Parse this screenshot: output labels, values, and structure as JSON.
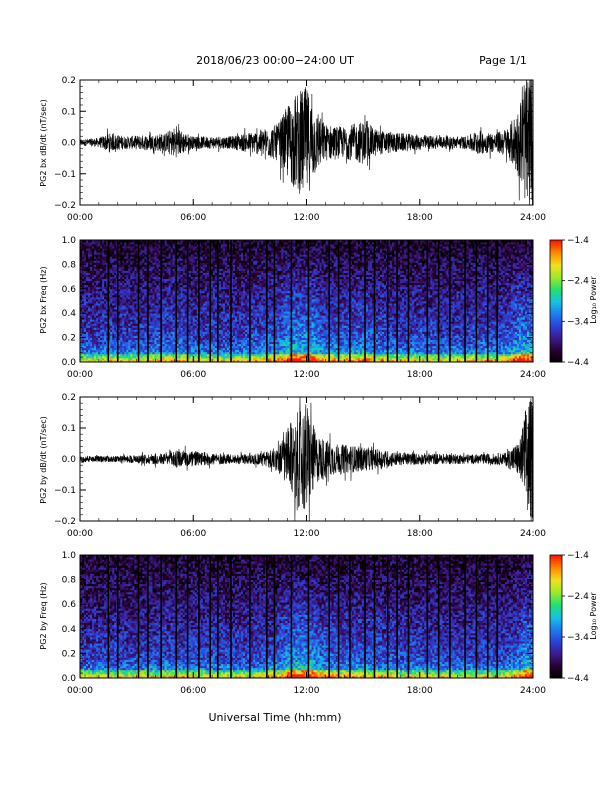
{
  "header": {
    "title": "2018/06/23  00:00−24:00 UT",
    "page": "Page 1/1"
  },
  "footer": {
    "xlabel": "Universal Time (hh:mm)"
  },
  "colors": {
    "trace": "#000000",
    "colormap": [
      "#000000",
      "#2a0030",
      "#3b1a8a",
      "#2d3fd6",
      "#1e7cf0",
      "#18c0e6",
      "#22e070",
      "#9ee82a",
      "#f0e020",
      "#ff8c00",
      "#ff1a00"
    ]
  },
  "chart_data": [
    {
      "type": "line",
      "ylabel": "PG2 bx dB/dt (nT/sec)",
      "xticks": [
        "00:00",
        "06:00",
        "12:00",
        "18:00",
        "24:00"
      ],
      "xlim": [
        0,
        24
      ],
      "ylim": [
        -0.2,
        0.2
      ],
      "yticks": [
        "−0.2",
        "−0.1",
        "0.0",
        "0.1",
        "0.2"
      ],
      "grid": false,
      "envelope": [
        {
          "t": 0.0,
          "a": 0.01
        },
        {
          "t": 1.0,
          "a": 0.015
        },
        {
          "t": 1.5,
          "a": 0.03
        },
        {
          "t": 2.5,
          "a": 0.02
        },
        {
          "t": 4.5,
          "a": 0.03
        },
        {
          "t": 5.0,
          "a": 0.05
        },
        {
          "t": 6.0,
          "a": 0.02
        },
        {
          "t": 8.0,
          "a": 0.02
        },
        {
          "t": 9.5,
          "a": 0.04
        },
        {
          "t": 10.5,
          "a": 0.06
        },
        {
          "t": 11.0,
          "a": 0.12
        },
        {
          "t": 11.5,
          "a": 0.16
        },
        {
          "t": 12.0,
          "a": 0.18
        },
        {
          "t": 12.5,
          "a": 0.1
        },
        {
          "t": 13.0,
          "a": 0.06
        },
        {
          "t": 14.0,
          "a": 0.05
        },
        {
          "t": 15.0,
          "a": 0.07
        },
        {
          "t": 15.8,
          "a": 0.04
        },
        {
          "t": 17.0,
          "a": 0.03
        },
        {
          "t": 19.0,
          "a": 0.02
        },
        {
          "t": 20.5,
          "a": 0.02
        },
        {
          "t": 21.0,
          "a": 0.04
        },
        {
          "t": 22.0,
          "a": 0.03
        },
        {
          "t": 22.7,
          "a": 0.05
        },
        {
          "t": 23.3,
          "a": 0.12
        },
        {
          "t": 23.7,
          "a": 0.22
        },
        {
          "t": 24.0,
          "a": 0.22
        }
      ]
    },
    {
      "type": "heatmap",
      "ylabel": "PG2 bx Freq (Hz)",
      "xticks": [
        "00:00",
        "06:00",
        "12:00",
        "18:00",
        "24:00"
      ],
      "xlim": [
        0,
        24
      ],
      "ylim": [
        0,
        1.0
      ],
      "yticks": [
        "0.0",
        "0.2",
        "0.4",
        "0.6",
        "0.8",
        "1.0"
      ],
      "colorbar": {
        "label": "Log₁₀ Power",
        "ticks": [
          "−1.4",
          "−2.4",
          "−3.4",
          "−4.4"
        ],
        "range": [
          -4.4,
          -1.4
        ]
      },
      "gaps": [
        1.5,
        2.0,
        3.1,
        3.6,
        4.3,
        5.1,
        5.7,
        6.3,
        6.9,
        7.3,
        8.0,
        9.0,
        9.9,
        10.3,
        11.2,
        12.1,
        13.2,
        13.7,
        14.3,
        15.1,
        15.6,
        16.3,
        16.8,
        17.4,
        18.4,
        19.0,
        19.6,
        20.4,
        21.0,
        21.6,
        22.1
      ]
    },
    {
      "type": "line",
      "ylabel": "PG2 by dB/dt (nT/sec)",
      "xticks": [
        "00:00",
        "06:00",
        "12:00",
        "18:00",
        "24:00"
      ],
      "xlim": [
        0,
        24
      ],
      "ylim": [
        -0.2,
        0.2
      ],
      "yticks": [
        "−0.2",
        "−0.1",
        "0.0",
        "0.1",
        "0.2"
      ],
      "grid": false,
      "envelope": [
        {
          "t": 0.0,
          "a": 0.01
        },
        {
          "t": 2.0,
          "a": 0.01
        },
        {
          "t": 4.5,
          "a": 0.02
        },
        {
          "t": 5.0,
          "a": 0.03
        },
        {
          "t": 8.0,
          "a": 0.015
        },
        {
          "t": 9.5,
          "a": 0.02
        },
        {
          "t": 10.5,
          "a": 0.04
        },
        {
          "t": 11.0,
          "a": 0.1
        },
        {
          "t": 11.5,
          "a": 0.15
        },
        {
          "t": 12.0,
          "a": 0.19
        },
        {
          "t": 12.5,
          "a": 0.08
        },
        {
          "t": 13.5,
          "a": 0.05
        },
        {
          "t": 15.0,
          "a": 0.04
        },
        {
          "t": 17.0,
          "a": 0.02
        },
        {
          "t": 21.0,
          "a": 0.015
        },
        {
          "t": 22.5,
          "a": 0.02
        },
        {
          "t": 23.3,
          "a": 0.06
        },
        {
          "t": 23.7,
          "a": 0.2
        },
        {
          "t": 24.0,
          "a": 0.2
        }
      ]
    },
    {
      "type": "heatmap",
      "ylabel": "PG2 by Freq (Hz)",
      "xticks": [
        "00:00",
        "06:00",
        "12:00",
        "18:00",
        "24:00"
      ],
      "xlim": [
        0,
        24
      ],
      "ylim": [
        0,
        1.0
      ],
      "yticks": [
        "0.0",
        "0.2",
        "0.4",
        "0.6",
        "0.8",
        "1.0"
      ],
      "colorbar": {
        "label": "Log₁₀ Power",
        "ticks": [
          "−1.4",
          "−2.4",
          "−3.4",
          "−4.4"
        ],
        "range": [
          -4.4,
          -1.4
        ]
      },
      "gaps": [
        1.5,
        2.0,
        3.1,
        3.6,
        4.3,
        5.1,
        5.7,
        6.3,
        6.9,
        7.3,
        8.0,
        9.0,
        9.9,
        10.3,
        11.2,
        12.1,
        13.2,
        13.7,
        14.3,
        15.1,
        15.6,
        16.3,
        16.8,
        17.4,
        18.4,
        19.0,
        19.6,
        20.4,
        21.0,
        21.6,
        22.1
      ]
    }
  ]
}
